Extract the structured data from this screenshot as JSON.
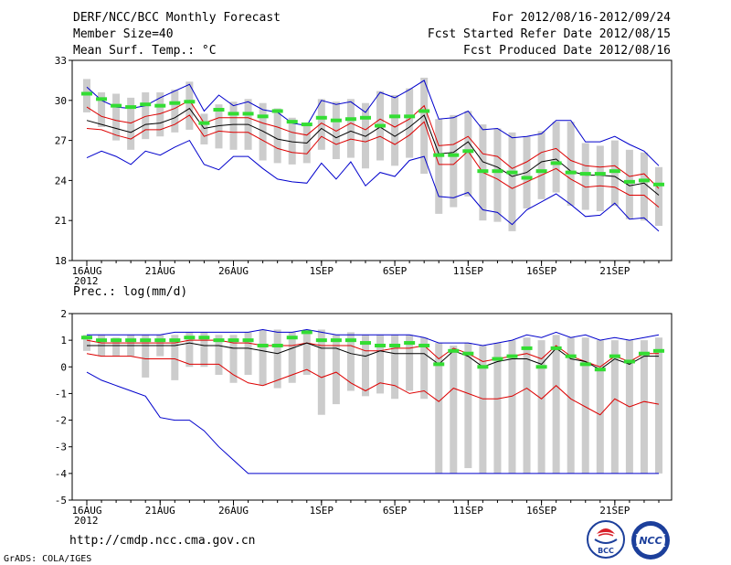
{
  "header": {
    "title": "DERF/NCC/BCC Monthly Forecast",
    "member_size": "Member Size=40",
    "forecast_period": "For 2012/08/16-2012/09/24",
    "start_date": "Fcst Started Refer Date 2012/08/15",
    "produced_date": "Fcst Produced Date 2012/08/16"
  },
  "footer": {
    "url": "http://cmdp.ncc.cma.gov.cn",
    "grads": "GrADS: COLA/IGES",
    "logo_left_text": "BCC",
    "logo_right_text": "NCC"
  },
  "colors": {
    "ens_max_min": "#0000cc",
    "spread": "#dd0000",
    "mean": "#000000",
    "box": "#cccccc",
    "median": "#33dd33"
  },
  "chart_data": [
    {
      "type": "line",
      "title": "Mean Surf. Temp.: °C",
      "ylim": [
        18,
        33
      ],
      "yticks": [
        18,
        21,
        24,
        27,
        30,
        33
      ],
      "x": [
        1,
        2,
        3,
        4,
        5,
        6,
        7,
        8,
        9,
        10,
        11,
        12,
        13,
        14,
        15,
        16,
        17,
        18,
        19,
        20,
        21,
        22,
        23,
        24,
        25,
        26,
        27,
        28,
        29,
        30,
        31,
        32,
        33,
        34,
        35,
        36,
        37,
        38,
        39,
        40
      ],
      "xticks": [
        {
          "x": 1,
          "label": "16AUG",
          "sub": "2012"
        },
        {
          "x": 6,
          "label": "21AUG"
        },
        {
          "x": 11,
          "label": "26AUG"
        },
        {
          "x": 17,
          "label": "1SEP"
        },
        {
          "x": 22,
          "label": "6SEP"
        },
        {
          "x": 27,
          "label": "11SEP"
        },
        {
          "x": 32,
          "label": "16SEP"
        },
        {
          "x": 37,
          "label": "21SEP"
        }
      ],
      "series": [
        {
          "name": "max",
          "values": [
            31.0,
            30.0,
            29.5,
            29.4,
            29.6,
            30.2,
            30.7,
            31.2,
            29.2,
            30.4,
            29.6,
            29.9,
            29.3,
            29.1,
            28.3,
            28.1,
            30.0,
            29.7,
            29.9,
            29.1,
            30.6,
            30.2,
            30.8,
            31.5,
            28.6,
            28.7,
            29.2,
            27.8,
            27.9,
            27.2,
            27.3,
            27.5,
            28.5,
            28.5,
            26.9,
            26.9,
            27.3,
            26.7,
            26.2,
            25.1
          ]
        },
        {
          "name": "upper",
          "values": [
            29.5,
            28.8,
            28.5,
            28.3,
            28.8,
            29.0,
            29.4,
            30.0,
            28.3,
            28.7,
            28.7,
            28.7,
            28.3,
            28.0,
            27.6,
            27.4,
            28.3,
            27.7,
            28.3,
            27.8,
            28.6,
            28.0,
            28.6,
            29.6,
            26.6,
            26.7,
            27.3,
            26.0,
            25.8,
            24.9,
            25.4,
            26.1,
            26.4,
            25.5,
            25.1,
            25.0,
            25.1,
            24.3,
            24.5,
            23.4
          ]
        },
        {
          "name": "mean",
          "values": [
            28.5,
            28.2,
            27.9,
            27.6,
            28.2,
            28.3,
            28.7,
            29.4,
            27.9,
            28.1,
            28.2,
            28.2,
            27.7,
            27.1,
            26.9,
            26.8,
            27.9,
            27.2,
            27.7,
            27.3,
            28.0,
            27.3,
            28.0,
            28.9,
            26.0,
            26.1,
            26.9,
            25.4,
            25.0,
            24.3,
            24.6,
            25.4,
            25.6,
            24.7,
            24.4,
            24.4,
            24.3,
            23.6,
            23.8,
            22.9
          ]
        },
        {
          "name": "lower",
          "values": [
            27.9,
            27.8,
            27.4,
            27.1,
            27.8,
            27.8,
            28.2,
            28.9,
            27.3,
            27.7,
            27.6,
            27.6,
            27.0,
            26.4,
            26.1,
            26.0,
            27.3,
            26.7,
            27.1,
            26.9,
            27.3,
            26.7,
            27.4,
            28.4,
            25.2,
            25.2,
            26.2,
            24.6,
            24.1,
            23.4,
            23.9,
            24.4,
            24.9,
            24.1,
            23.5,
            23.6,
            23.5,
            22.9,
            22.9,
            22.0
          ]
        },
        {
          "name": "min",
          "values": [
            25.7,
            26.2,
            25.8,
            25.2,
            26.2,
            25.9,
            26.5,
            27.0,
            25.2,
            24.8,
            25.8,
            25.8,
            24.9,
            24.1,
            23.9,
            23.8,
            25.3,
            24.1,
            25.4,
            23.6,
            24.6,
            24.3,
            25.5,
            25.8,
            22.8,
            22.7,
            23.1,
            21.8,
            21.6,
            20.7,
            21.8,
            22.4,
            23.0,
            22.2,
            21.3,
            21.4,
            22.3,
            21.1,
            21.2,
            20.2
          ]
        }
      ],
      "boxes": {
        "high": [
          31.6,
          30.6,
          30.5,
          30.2,
          30.6,
          30.6,
          30.8,
          31.4,
          29.0,
          29.7,
          29.9,
          30.1,
          29.8,
          29.4,
          28.7,
          28.1,
          30.1,
          29.9,
          30.1,
          29.8,
          30.7,
          30.4,
          30.9,
          31.7,
          28.6,
          28.9,
          29.2,
          28.2,
          27.9,
          27.6,
          27.3,
          27.7,
          28.4,
          28.4,
          26.8,
          26.6,
          27.0,
          26.3,
          26.1,
          25.0
        ],
        "low": [
          29.1,
          28.0,
          27.0,
          26.3,
          27.1,
          27.3,
          27.6,
          27.8,
          26.7,
          26.4,
          26.3,
          26.3,
          25.5,
          25.3,
          25.2,
          25.3,
          26.3,
          25.6,
          25.7,
          24.9,
          25.5,
          25.1,
          25.7,
          24.5,
          21.5,
          22.0,
          22.8,
          21.0,
          20.9,
          20.2,
          21.9,
          22.6,
          23.1,
          22.1,
          21.8,
          21.7,
          22.1,
          21.1,
          21.0,
          20.6
        ],
        "median": [
          30.5,
          30.1,
          29.6,
          29.5,
          29.7,
          29.6,
          29.8,
          29.9,
          28.3,
          29.3,
          29.0,
          29.0,
          28.8,
          29.2,
          28.4,
          28.2,
          28.7,
          28.5,
          28.6,
          28.7,
          28.1,
          28.8,
          28.8,
          29.2,
          25.9,
          25.9,
          26.2,
          24.7,
          24.7,
          24.6,
          24.2,
          24.7,
          25.3,
          24.6,
          24.5,
          24.5,
          24.7,
          23.9,
          24.0,
          23.7
        ]
      }
    },
    {
      "type": "line",
      "title": "Prec.: log(mm/d)",
      "ylim": [
        -5,
        2
      ],
      "yticks": [
        -5,
        -4,
        -3,
        -2,
        -1,
        0,
        1,
        2
      ],
      "x": [
        1,
        2,
        3,
        4,
        5,
        6,
        7,
        8,
        9,
        10,
        11,
        12,
        13,
        14,
        15,
        16,
        17,
        18,
        19,
        20,
        21,
        22,
        23,
        24,
        25,
        26,
        27,
        28,
        29,
        30,
        31,
        32,
        33,
        34,
        35,
        36,
        37,
        38,
        39,
        40
      ],
      "xticks": [
        {
          "x": 1,
          "label": "16AUG",
          "sub": "2012"
        },
        {
          "x": 6,
          "label": "21AUG"
        },
        {
          "x": 11,
          "label": "26AUG"
        },
        {
          "x": 17,
          "label": "1SEP"
        },
        {
          "x": 22,
          "label": "6SEP"
        },
        {
          "x": 27,
          "label": "11SEP"
        },
        {
          "x": 32,
          "label": "16SEP"
        },
        {
          "x": 37,
          "label": "21SEP"
        }
      ],
      "series": [
        {
          "name": "max",
          "values": [
            1.2,
            1.2,
            1.2,
            1.2,
            1.2,
            1.2,
            1.3,
            1.3,
            1.3,
            1.3,
            1.3,
            1.3,
            1.4,
            1.3,
            1.3,
            1.4,
            1.3,
            1.2,
            1.2,
            1.2,
            1.2,
            1.2,
            1.2,
            1.1,
            0.9,
            0.9,
            0.9,
            0.8,
            0.9,
            1.0,
            1.2,
            1.1,
            1.3,
            1.1,
            1.2,
            1.0,
            1.1,
            1.0,
            1.1,
            1.2
          ]
        },
        {
          "name": "upper",
          "values": [
            1.0,
            0.9,
            0.9,
            0.9,
            0.9,
            0.9,
            0.9,
            1.0,
            1.0,
            1.0,
            0.9,
            0.9,
            0.8,
            0.8,
            0.8,
            0.9,
            0.8,
            0.8,
            0.8,
            0.6,
            0.6,
            0.7,
            0.7,
            0.8,
            0.3,
            0.7,
            0.5,
            0.2,
            0.3,
            0.4,
            0.5,
            0.3,
            0.8,
            0.4,
            0.2,
            0.0,
            0.4,
            0.2,
            0.5,
            0.5
          ]
        },
        {
          "name": "mean",
          "values": [
            0.8,
            0.8,
            0.8,
            0.8,
            0.8,
            0.8,
            0.8,
            0.9,
            0.8,
            0.8,
            0.7,
            0.7,
            0.6,
            0.5,
            0.7,
            0.9,
            0.7,
            0.7,
            0.5,
            0.4,
            0.6,
            0.5,
            0.5,
            0.5,
            0.1,
            0.6,
            0.4,
            0.0,
            0.2,
            0.3,
            0.3,
            0.1,
            0.7,
            0.3,
            0.2,
            -0.1,
            0.3,
            0.1,
            0.4,
            0.4
          ]
        },
        {
          "name": "lower",
          "values": [
            0.5,
            0.4,
            0.4,
            0.4,
            0.3,
            0.3,
            0.3,
            0.1,
            0.1,
            0.1,
            -0.3,
            -0.6,
            -0.7,
            -0.5,
            -0.3,
            -0.1,
            -0.4,
            -0.2,
            -0.6,
            -0.9,
            -0.6,
            -0.7,
            -1.0,
            -0.9,
            -1.3,
            -0.8,
            -1.0,
            -1.2,
            -1.2,
            -1.1,
            -0.8,
            -1.2,
            -0.7,
            -1.2,
            -1.5,
            -1.8,
            -1.2,
            -1.5,
            -1.3,
            -1.4
          ]
        },
        {
          "name": "min",
          "values": [
            -0.2,
            -0.5,
            -0.7,
            -0.9,
            -1.1,
            -1.9,
            -2.0,
            -2.0,
            -2.4,
            -3.0,
            -3.5,
            -4.0,
            -4.0,
            -4.0,
            -4.0,
            -4.0,
            -4.0,
            -4.0,
            -4.0,
            -4.0,
            -4.0,
            -4.0,
            -4.0,
            -4.0,
            -4.0,
            -4.0,
            -4.0,
            -4.0,
            -4.0,
            -4.0,
            -4.0,
            -4.0,
            -4.0,
            -4.0,
            -4.0,
            -4.0,
            -4.0,
            -4.0,
            -4.0,
            -4.0
          ]
        }
      ],
      "boxes": {
        "high": [
          1.2,
          1.2,
          1.1,
          1.2,
          1.2,
          1.2,
          1.2,
          1.3,
          1.3,
          1.2,
          1.2,
          1.3,
          1.4,
          1.4,
          1.3,
          1.4,
          1.4,
          1.2,
          1.3,
          1.2,
          1.2,
          1.2,
          1.2,
          1.1,
          0.9,
          0.8,
          0.9,
          0.8,
          0.9,
          1.0,
          1.1,
          1.0,
          1.2,
          1.1,
          1.1,
          1.0,
          1.0,
          1.0,
          1.0,
          1.1
        ],
        "low": [
          0.6,
          0.4,
          0.4,
          0.4,
          -0.4,
          0.4,
          -0.5,
          0.0,
          0.0,
          -0.3,
          -0.6,
          -0.3,
          -0.7,
          -0.8,
          -0.6,
          -0.3,
          -1.8,
          -1.4,
          -0.9,
          -1.1,
          -1.0,
          -1.2,
          -0.9,
          -1.2,
          -4.0,
          -4.0,
          -3.8,
          -4.0,
          -4.0,
          -4.0,
          -4.0,
          -4.0,
          -4.0,
          -4.0,
          -4.0,
          -4.0,
          -4.0,
          -4.0,
          -4.0,
          -4.0
        ],
        "median": [
          1.1,
          1.0,
          1.0,
          1.0,
          1.0,
          1.0,
          1.0,
          1.1,
          1.1,
          1.0,
          1.0,
          1.0,
          0.8,
          0.8,
          1.1,
          1.3,
          1.0,
          1.0,
          1.0,
          0.9,
          0.8,
          0.8,
          0.9,
          0.8,
          0.1,
          0.6,
          0.5,
          0.0,
          0.3,
          0.4,
          0.7,
          0.0,
          0.7,
          0.4,
          0.1,
          -0.1,
          0.4,
          0.2,
          0.5,
          0.6
        ]
      }
    }
  ]
}
